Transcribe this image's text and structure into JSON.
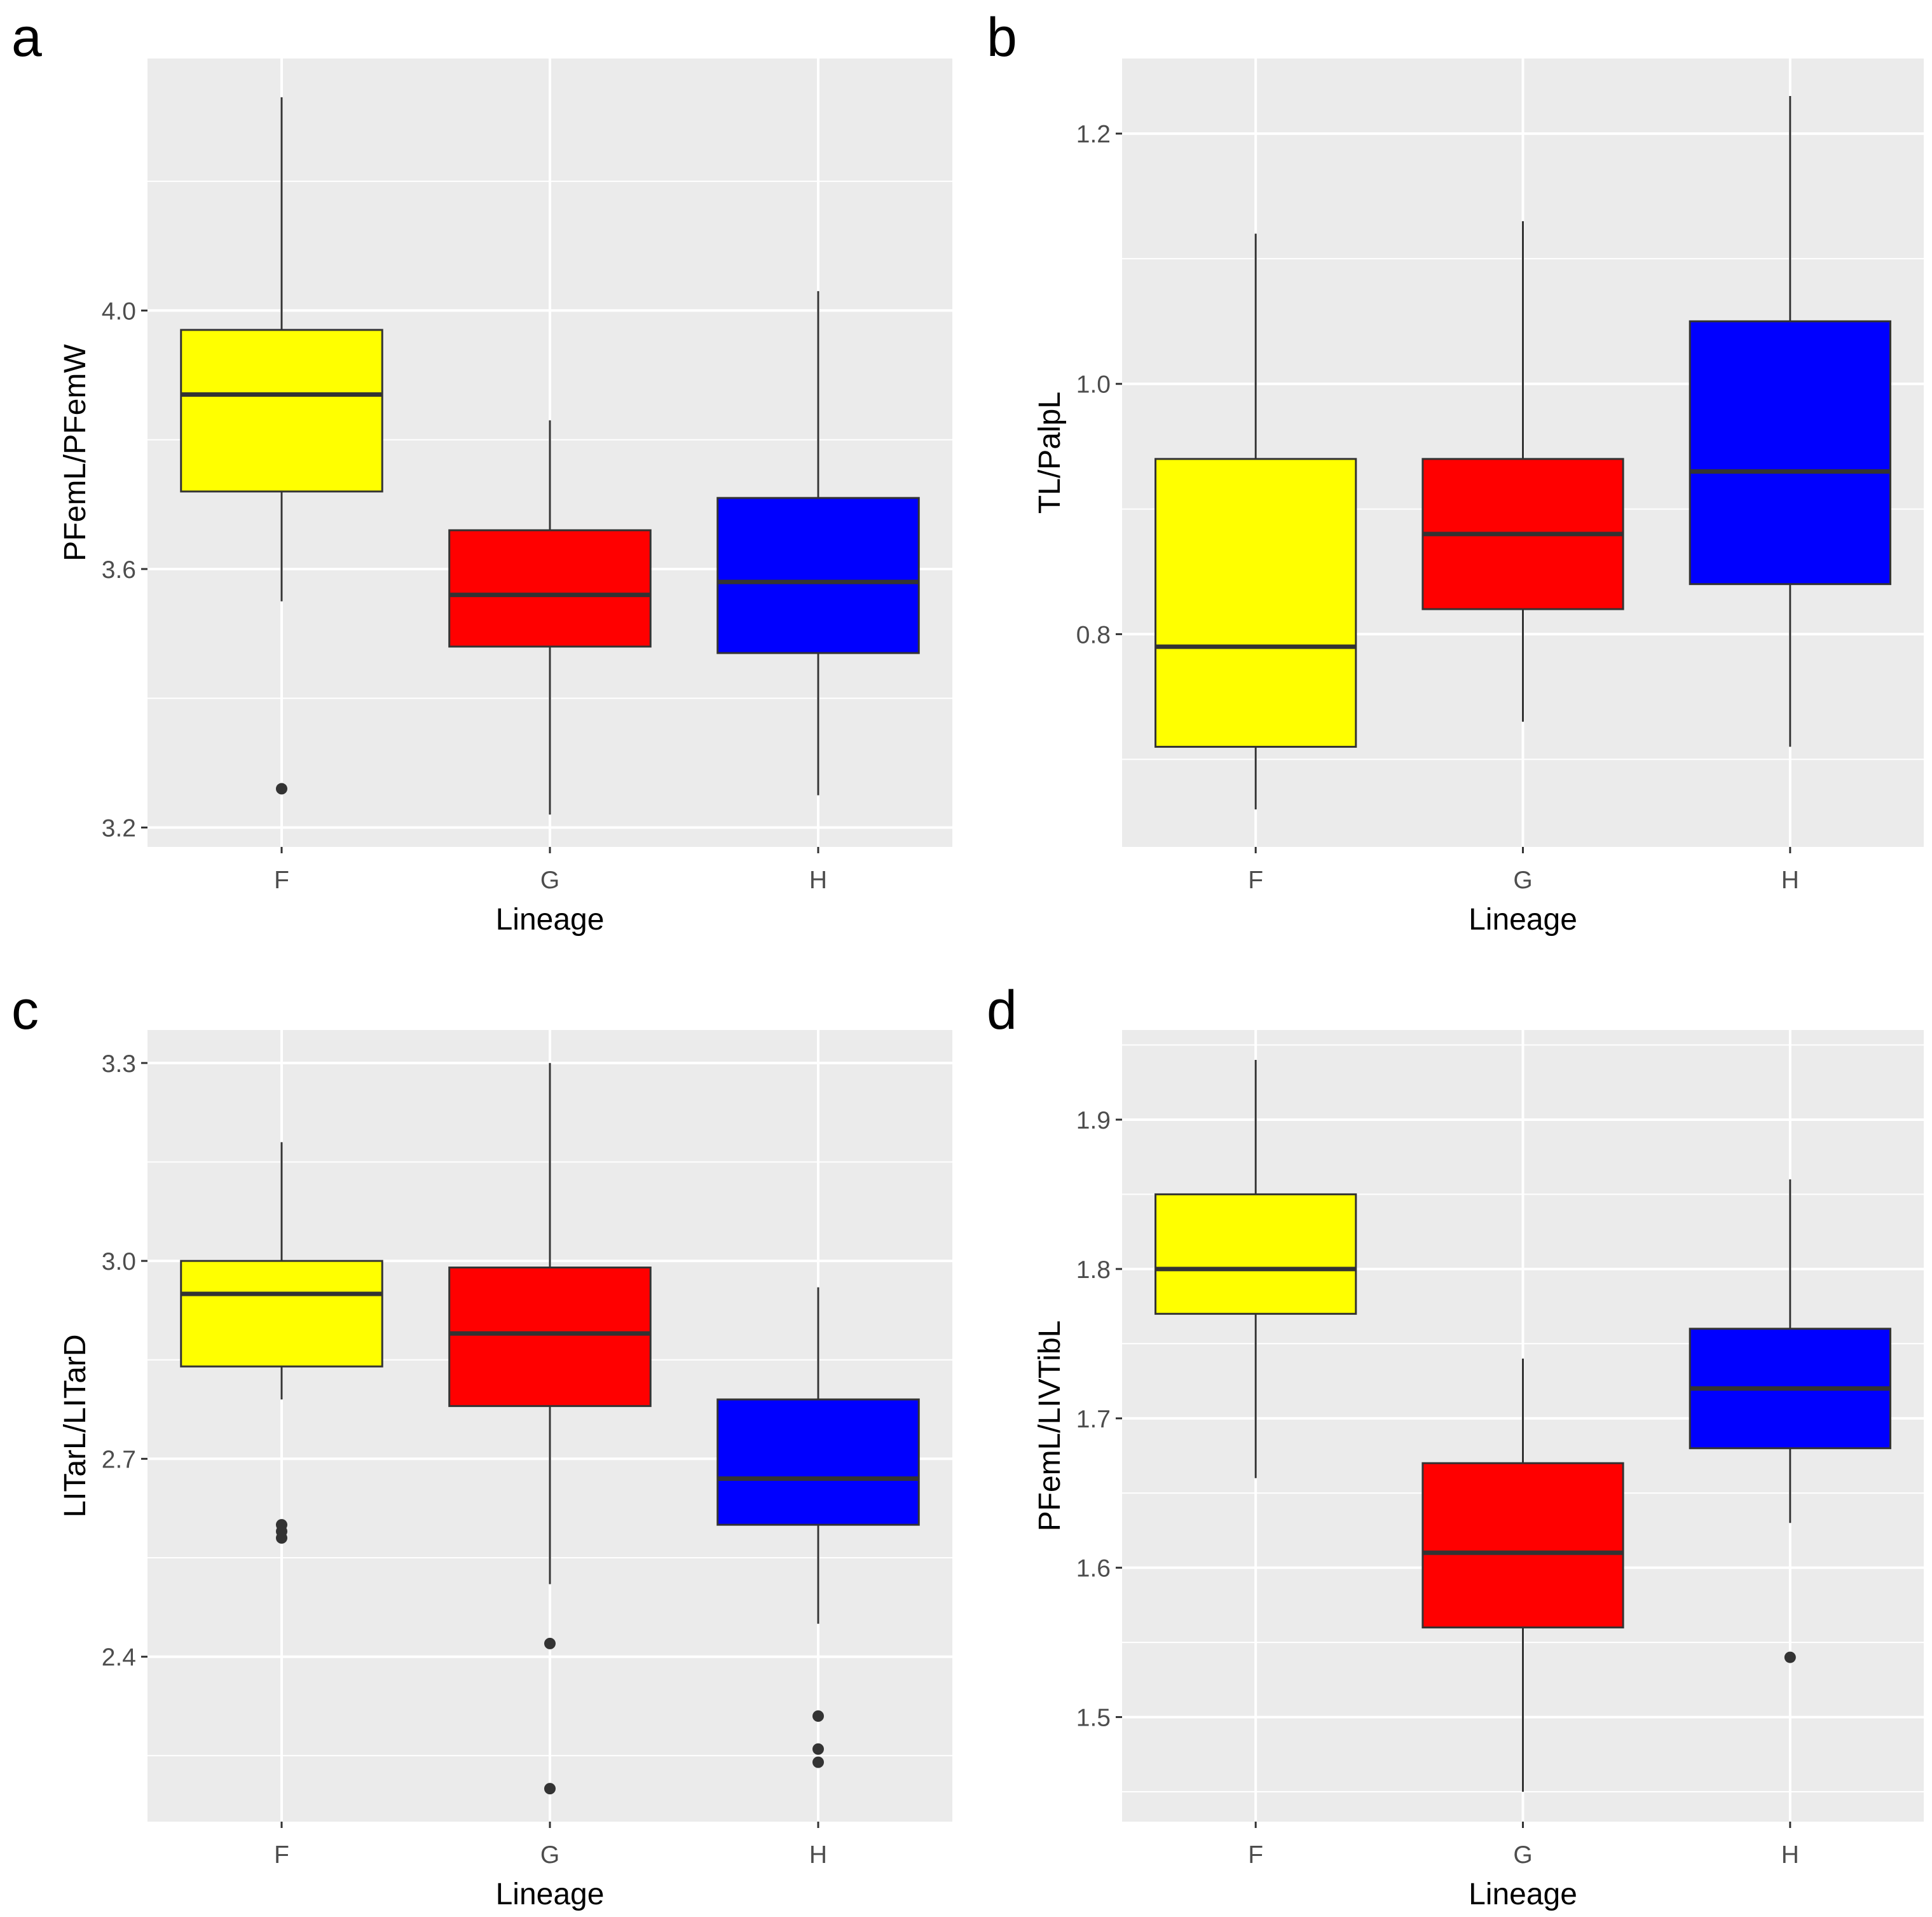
{
  "figure": {
    "x_axis_title": "Lineage",
    "fill_colors": {
      "F": "#ffff00",
      "G": "#ff0000",
      "H": "#0000ff"
    },
    "panel_background": "#ebebeb",
    "grid_color": "#ffffff",
    "box_outline": "#333333"
  },
  "chart_data": [
    {
      "type": "boxplot",
      "panel": "a",
      "title": "",
      "xlabel": "Lineage",
      "ylabel": "PFemL/PFemW",
      "categories": [
        "F",
        "G",
        "H"
      ],
      "ylim": [
        3.17,
        4.39
      ],
      "yticks": [
        3.2,
        3.6,
        4.0
      ],
      "ytick_labels": [
        "3.2",
        "3.6",
        "4.0"
      ],
      "boxes": [
        {
          "category": "F",
          "whisker_low": 3.55,
          "q1": 3.72,
          "median": 3.87,
          "q3": 3.97,
          "whisker_high": 4.33,
          "outliers": [
            3.26
          ]
        },
        {
          "category": "G",
          "whisker_low": 3.22,
          "q1": 3.48,
          "median": 3.56,
          "q3": 3.66,
          "whisker_high": 3.83,
          "outliers": []
        },
        {
          "category": "H",
          "whisker_low": 3.25,
          "q1": 3.47,
          "median": 3.58,
          "q3": 3.71,
          "whisker_high": 4.03,
          "outliers": []
        }
      ]
    },
    {
      "type": "boxplot",
      "panel": "b",
      "title": "",
      "xlabel": "Lineage",
      "ylabel": "TL/PalpL",
      "categories": [
        "F",
        "G",
        "H"
      ],
      "ylim": [
        0.63,
        1.26
      ],
      "yticks": [
        0.8,
        1.0,
        1.2
      ],
      "ytick_labels": [
        "0.8",
        "1.0",
        "1.2"
      ],
      "boxes": [
        {
          "category": "F",
          "whisker_low": 0.66,
          "q1": 0.71,
          "median": 0.79,
          "q3": 0.94,
          "whisker_high": 1.12,
          "outliers": []
        },
        {
          "category": "G",
          "whisker_low": 0.73,
          "q1": 0.82,
          "median": 0.88,
          "q3": 0.94,
          "whisker_high": 1.13,
          "outliers": []
        },
        {
          "category": "H",
          "whisker_low": 0.71,
          "q1": 0.84,
          "median": 0.93,
          "q3": 1.05,
          "whisker_high": 1.23,
          "outliers": []
        }
      ]
    },
    {
      "type": "boxplot",
      "panel": "c",
      "title": "",
      "xlabel": "Lineage",
      "ylabel": "LITarL/LITarD",
      "categories": [
        "F",
        "G",
        "H"
      ],
      "ylim": [
        2.15,
        3.35
      ],
      "yticks": [
        2.4,
        2.7,
        3.0,
        3.3
      ],
      "ytick_labels": [
        "2.4",
        "2.7",
        "3.0",
        "3.3"
      ],
      "boxes": [
        {
          "category": "F",
          "whisker_low": 2.79,
          "q1": 2.84,
          "median": 2.95,
          "q3": 3.0,
          "whisker_high": 3.18,
          "outliers": [
            2.6,
            2.59,
            2.58
          ]
        },
        {
          "category": "G",
          "whisker_low": 2.51,
          "q1": 2.78,
          "median": 2.89,
          "q3": 2.99,
          "whisker_high": 3.3,
          "outliers": [
            2.42,
            2.2
          ]
        },
        {
          "category": "H",
          "whisker_low": 2.45,
          "q1": 2.6,
          "median": 2.67,
          "q3": 2.79,
          "whisker_high": 2.96,
          "outliers": [
            2.31,
            2.26,
            2.24
          ]
        }
      ]
    },
    {
      "type": "boxplot",
      "panel": "d",
      "title": "",
      "xlabel": "Lineage",
      "ylabel": "PFemL/LIVTibL",
      "categories": [
        "F",
        "G",
        "H"
      ],
      "ylim": [
        1.43,
        1.96
      ],
      "yticks": [
        1.5,
        1.6,
        1.7,
        1.8,
        1.9
      ],
      "ytick_labels": [
        "1.5",
        "1.6",
        "1.7",
        "1.8",
        "1.9"
      ],
      "boxes": [
        {
          "category": "F",
          "whisker_low": 1.66,
          "q1": 1.77,
          "median": 1.8,
          "q3": 1.85,
          "whisker_high": 1.94,
          "outliers": []
        },
        {
          "category": "G",
          "whisker_low": 1.45,
          "q1": 1.56,
          "median": 1.61,
          "q3": 1.67,
          "whisker_high": 1.74,
          "outliers": []
        },
        {
          "category": "H",
          "whisker_low": 1.63,
          "q1": 1.68,
          "median": 1.72,
          "q3": 1.76,
          "whisker_high": 1.86,
          "outliers": [
            1.54
          ]
        }
      ]
    }
  ]
}
